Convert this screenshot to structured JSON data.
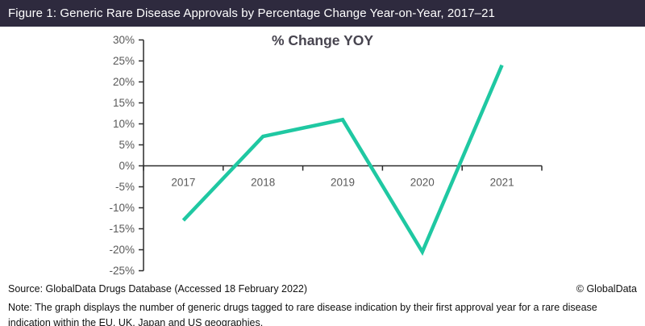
{
  "header": {
    "title": "Figure 1: Generic Rare Disease Approvals by Percentage Change Year-on-Year, 2017–21",
    "background_color": "#2e2a3e",
    "text_color": "#ffffff"
  },
  "chart_data": {
    "type": "line",
    "title": "% Change YOY",
    "categories": [
      "2017",
      "2018",
      "2019",
      "2020",
      "2021"
    ],
    "values": [
      -13,
      7,
      11,
      -20.5,
      24
    ],
    "series_name": "% Change YOY",
    "xlabel": "",
    "ylabel": "",
    "ylim": [
      -25,
      30
    ],
    "y_ticks": [
      {
        "value": 30,
        "label": "30%"
      },
      {
        "value": 25,
        "label": "25%"
      },
      {
        "value": 20,
        "label": "20%"
      },
      {
        "value": 15,
        "label": "15%"
      },
      {
        "value": 10,
        "label": "10%"
      },
      {
        "value": 5,
        "label": "5%"
      },
      {
        "value": 0,
        "label": "0%"
      },
      {
        "value": -5,
        "label": "-5%"
      },
      {
        "value": -10,
        "label": "-10%"
      },
      {
        "value": -15,
        "label": "-15%"
      },
      {
        "value": -20,
        "label": "-20%"
      },
      {
        "value": -25,
        "label": "-25%"
      }
    ],
    "grid": false,
    "legend": "none",
    "line_color": "#1fc8a2",
    "axis_color": "#2b2b2b",
    "tick_label_color": "#595959",
    "title_color": "#47444f"
  },
  "footer": {
    "source": "Source: GlobalData Drugs Database (Accessed 18 February 2022)",
    "copyright": "© GlobalData",
    "note": "Note: The graph displays the number of generic drugs tagged to rare disease indication by their first approval year for a rare disease indication within the EU, UK, Japan and US geographies."
  }
}
